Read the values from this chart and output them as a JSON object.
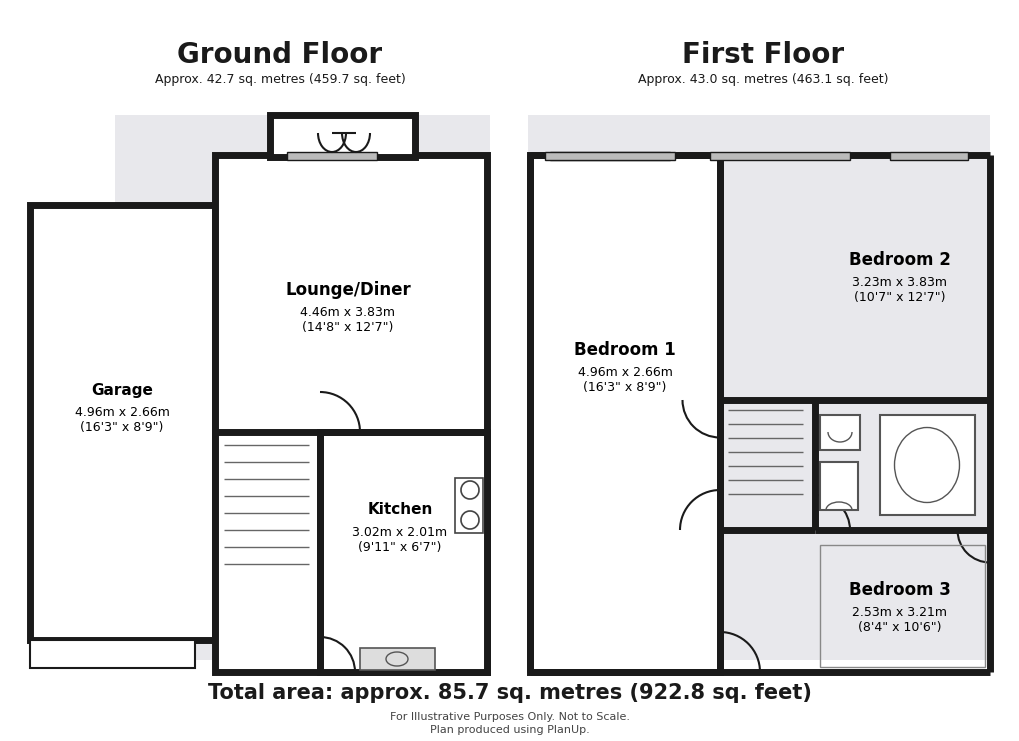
{
  "bg_color": "#ffffff",
  "wall_color": "#1a1a1a",
  "room_fill": "#ffffff",
  "shaded_fill": "#e8e8ec",
  "wall_lw": 5.0,
  "thin_lw": 1.5,
  "title": "Ground Floor",
  "title2": "First Floor",
  "subtitle": "Approx. 42.7 sq. metres (459.7 sq. feet)",
  "subtitle2": "Approx. 43.0 sq. metres (463.1 sq. feet)",
  "total": "Total area: approx. 85.7 sq. metres (922.8 sq. feet)",
  "footer1": "For Illustrative Purposes Only. Not to Scale.",
  "footer2": "Plan produced using PlanUp.",
  "rooms": {
    "garage": {
      "label": "Garage",
      "dim1": "4.96m x 2.66m",
      "dim2": "(16'3\" x 8'9\")"
    },
    "lounge": {
      "label": "Lounge/Diner",
      "dim1": "4.46m x 3.83m",
      "dim2": "(14'8\" x 12'7\")"
    },
    "kitchen": {
      "label": "Kitchen",
      "dim1": "3.02m x 2.01m",
      "dim2": "(9'11\" x 6'7\")"
    },
    "bed1": {
      "label": "Bedroom 1",
      "dim1": "4.96m x 2.66m",
      "dim2": "(16'3\" x 8'9\")"
    },
    "bed2": {
      "label": "Bedroom 2",
      "dim1": "3.23m x 3.83m",
      "dim2": "(10'7\" x 12'7\")"
    },
    "bed3": {
      "label": "Bedroom 3",
      "dim1": "2.53m x 3.21m",
      "dim2": "(8'4\" x 10'6\")"
    }
  }
}
